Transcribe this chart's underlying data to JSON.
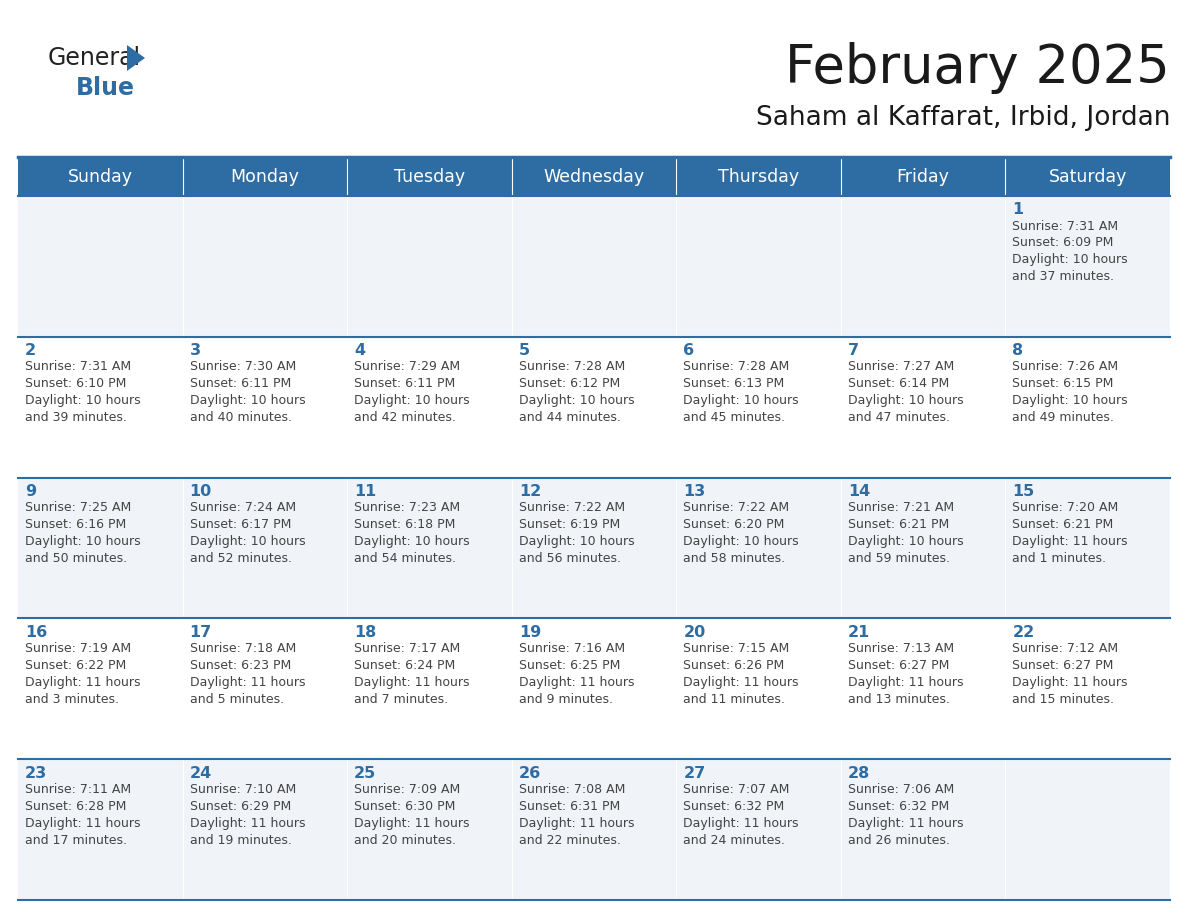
{
  "title": "February 2025",
  "subtitle": "Saham al Kaffarat, Irbid, Jordan",
  "header_bg": "#2E6DA4",
  "header_text_color": "#FFFFFF",
  "cell_bg_light": "#F0F4F8",
  "cell_bg_white": "#FFFFFF",
  "day_number_color": "#2E6DA4",
  "text_color": "#444444",
  "days_of_week": [
    "Sunday",
    "Monday",
    "Tuesday",
    "Wednesday",
    "Thursday",
    "Friday",
    "Saturday"
  ],
  "calendar_data": [
    [
      null,
      null,
      null,
      null,
      null,
      null,
      {
        "day": 1,
        "sunrise": "7:31 AM",
        "sunset": "6:09 PM",
        "daylight_hours": 10,
        "daylight_minutes": 37
      }
    ],
    [
      {
        "day": 2,
        "sunrise": "7:31 AM",
        "sunset": "6:10 PM",
        "daylight_hours": 10,
        "daylight_minutes": 39
      },
      {
        "day": 3,
        "sunrise": "7:30 AM",
        "sunset": "6:11 PM",
        "daylight_hours": 10,
        "daylight_minutes": 40
      },
      {
        "day": 4,
        "sunrise": "7:29 AM",
        "sunset": "6:11 PM",
        "daylight_hours": 10,
        "daylight_minutes": 42
      },
      {
        "day": 5,
        "sunrise": "7:28 AM",
        "sunset": "6:12 PM",
        "daylight_hours": 10,
        "daylight_minutes": 44
      },
      {
        "day": 6,
        "sunrise": "7:28 AM",
        "sunset": "6:13 PM",
        "daylight_hours": 10,
        "daylight_minutes": 45
      },
      {
        "day": 7,
        "sunrise": "7:27 AM",
        "sunset": "6:14 PM",
        "daylight_hours": 10,
        "daylight_minutes": 47
      },
      {
        "day": 8,
        "sunrise": "7:26 AM",
        "sunset": "6:15 PM",
        "daylight_hours": 10,
        "daylight_minutes": 49
      }
    ],
    [
      {
        "day": 9,
        "sunrise": "7:25 AM",
        "sunset": "6:16 PM",
        "daylight_hours": 10,
        "daylight_minutes": 50
      },
      {
        "day": 10,
        "sunrise": "7:24 AM",
        "sunset": "6:17 PM",
        "daylight_hours": 10,
        "daylight_minutes": 52
      },
      {
        "day": 11,
        "sunrise": "7:23 AM",
        "sunset": "6:18 PM",
        "daylight_hours": 10,
        "daylight_minutes": 54
      },
      {
        "day": 12,
        "sunrise": "7:22 AM",
        "sunset": "6:19 PM",
        "daylight_hours": 10,
        "daylight_minutes": 56
      },
      {
        "day": 13,
        "sunrise": "7:22 AM",
        "sunset": "6:20 PM",
        "daylight_hours": 10,
        "daylight_minutes": 58
      },
      {
        "day": 14,
        "sunrise": "7:21 AM",
        "sunset": "6:21 PM",
        "daylight_hours": 10,
        "daylight_minutes": 59
      },
      {
        "day": 15,
        "sunrise": "7:20 AM",
        "sunset": "6:21 PM",
        "daylight_hours": 11,
        "daylight_minutes": 1
      }
    ],
    [
      {
        "day": 16,
        "sunrise": "7:19 AM",
        "sunset": "6:22 PM",
        "daylight_hours": 11,
        "daylight_minutes": 3
      },
      {
        "day": 17,
        "sunrise": "7:18 AM",
        "sunset": "6:23 PM",
        "daylight_hours": 11,
        "daylight_minutes": 5
      },
      {
        "day": 18,
        "sunrise": "7:17 AM",
        "sunset": "6:24 PM",
        "daylight_hours": 11,
        "daylight_minutes": 7
      },
      {
        "day": 19,
        "sunrise": "7:16 AM",
        "sunset": "6:25 PM",
        "daylight_hours": 11,
        "daylight_minutes": 9
      },
      {
        "day": 20,
        "sunrise": "7:15 AM",
        "sunset": "6:26 PM",
        "daylight_hours": 11,
        "daylight_minutes": 11
      },
      {
        "day": 21,
        "sunrise": "7:13 AM",
        "sunset": "6:27 PM",
        "daylight_hours": 11,
        "daylight_minutes": 13
      },
      {
        "day": 22,
        "sunrise": "7:12 AM",
        "sunset": "6:27 PM",
        "daylight_hours": 11,
        "daylight_minutes": 15
      }
    ],
    [
      {
        "day": 23,
        "sunrise": "7:11 AM",
        "sunset": "6:28 PM",
        "daylight_hours": 11,
        "daylight_minutes": 17
      },
      {
        "day": 24,
        "sunrise": "7:10 AM",
        "sunset": "6:29 PM",
        "daylight_hours": 11,
        "daylight_minutes": 19
      },
      {
        "day": 25,
        "sunrise": "7:09 AM",
        "sunset": "6:30 PM",
        "daylight_hours": 11,
        "daylight_minutes": 20
      },
      {
        "day": 26,
        "sunrise": "7:08 AM",
        "sunset": "6:31 PM",
        "daylight_hours": 11,
        "daylight_minutes": 22
      },
      {
        "day": 27,
        "sunrise": "7:07 AM",
        "sunset": "6:32 PM",
        "daylight_hours": 11,
        "daylight_minutes": 24
      },
      {
        "day": 28,
        "sunrise": "7:06 AM",
        "sunset": "6:32 PM",
        "daylight_hours": 11,
        "daylight_minutes": 26
      },
      null
    ]
  ]
}
